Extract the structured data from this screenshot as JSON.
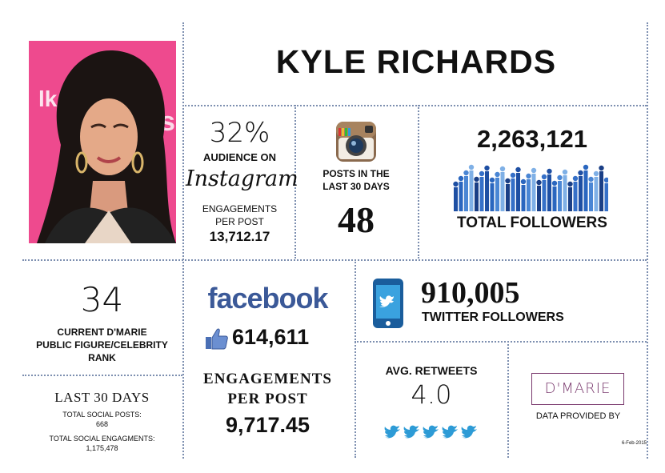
{
  "title": "KYLE RICHARDS",
  "portrait": {
    "alt": "Kyle Richards portrait"
  },
  "instagram": {
    "audience_pct": "32%",
    "audience_label": "AUDIENCE ON",
    "brand": "Instagram",
    "engagements_label_1": "ENGAGEMENTS",
    "engagements_label_2": "PER POST",
    "engagements_value": "13,712.17",
    "posts_label_1": "POSTS IN THE",
    "posts_label_2": "LAST 30 DAYS",
    "posts_value": "48"
  },
  "totals": {
    "followers_value": "2,263,121",
    "followers_label": "TOTAL FOLLOWERS"
  },
  "rank": {
    "value": "34",
    "label_1": "CURRENT D'MARIE",
    "label_2": "PUBLIC FIGURE/CELEBRITY",
    "label_3": "RANK"
  },
  "last30": {
    "heading": "LAST 30 DAYS",
    "posts_label": "TOTAL SOCIAL POSTS:",
    "posts_value": "668",
    "eng_label": "TOTAL SOCIAL ENGAGMENTS:",
    "eng_value": "1,175,478"
  },
  "facebook": {
    "brand": "facebook",
    "likes": "614,611",
    "eng_label_1": "ENGAGEMENTS",
    "eng_label_2": "PER POST",
    "eng_value": "9,717.45"
  },
  "twitter": {
    "followers_value": "910,005",
    "followers_label": "TWITTER FOLLOWERS",
    "retweets_label": "AVG. RETWEETS",
    "retweets_value": "4.0"
  },
  "credit": {
    "logo": "D'MARIE",
    "provided_by": "DATA PROVIDED BY",
    "date": "6-Feb-2015"
  },
  "colors": {
    "accent_blue": "#3b5998",
    "twitter_blue": "#2d9bd6",
    "divider": "#7d8fb0",
    "dmarie_purple": "#7a3a6e"
  }
}
